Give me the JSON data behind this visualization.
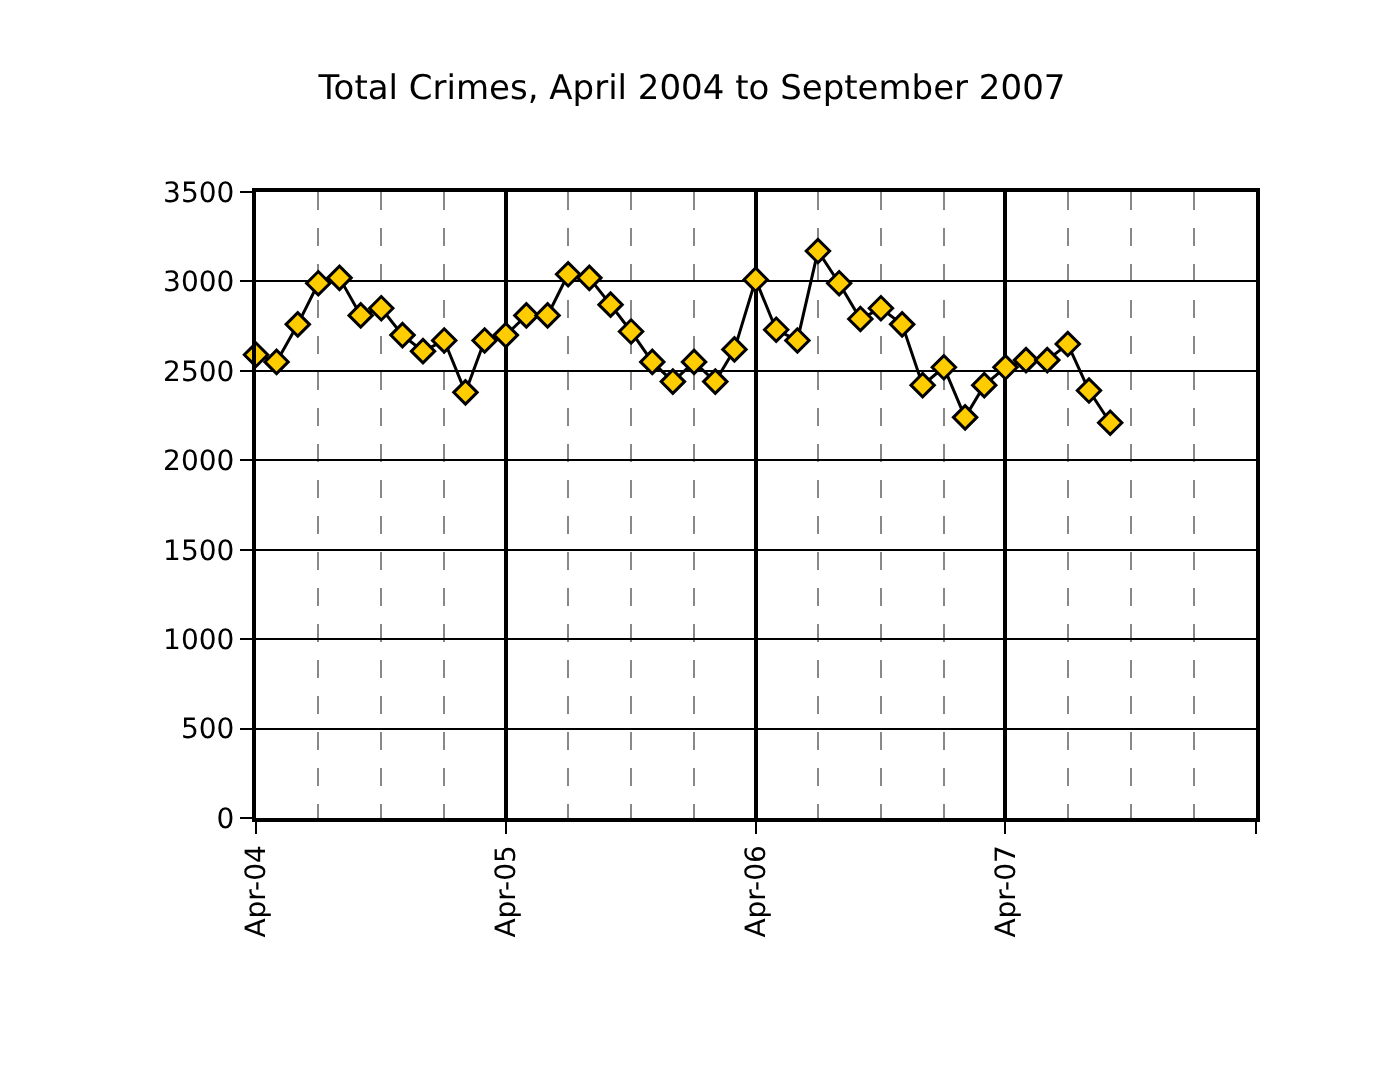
{
  "chart_data": {
    "type": "line",
    "title": "Total Crimes, April 2004 to September 2007",
    "x": [
      "2004-04",
      "2004-05",
      "2004-06",
      "2004-07",
      "2004-08",
      "2004-09",
      "2004-10",
      "2004-11",
      "2004-12",
      "2005-01",
      "2005-02",
      "2005-03",
      "2005-04",
      "2005-05",
      "2005-06",
      "2005-07",
      "2005-08",
      "2005-09",
      "2005-10",
      "2005-11",
      "2005-12",
      "2006-01",
      "2006-02",
      "2006-03",
      "2006-04",
      "2006-05",
      "2006-06",
      "2006-07",
      "2006-08",
      "2006-09",
      "2006-10",
      "2006-11",
      "2006-12",
      "2007-01",
      "2007-02",
      "2007-03",
      "2007-04",
      "2007-05",
      "2007-06",
      "2007-07",
      "2007-08",
      "2007-09"
    ],
    "series": [
      {
        "color": "#ffcc00",
        "values": [
          2590,
          2550,
          2760,
          2990,
          3020,
          2810,
          2850,
          2700,
          2610,
          2670,
          2380,
          2670,
          2700,
          2810,
          2810,
          3040,
          3020,
          2870,
          2720,
          2550,
          2440,
          2550,
          2440,
          2620,
          3010,
          2730,
          2670,
          3170,
          2990,
          2790,
          2850,
          2760,
          2420,
          2520,
          2240,
          2420,
          2520,
          2560,
          2560,
          2650,
          2390,
          2210
        ]
      }
    ],
    "xlim": [
      "2004-04",
      "2008-04"
    ],
    "xticks": [
      {
        "value": "2004-04",
        "label": "Apr-04"
      },
      {
        "value": "2005-04",
        "label": "Apr-05"
      },
      {
        "value": "2006-04",
        "label": "Apr-06"
      },
      {
        "value": "2007-04",
        "label": "Apr-07"
      },
      {
        "value": "2008-04",
        "label": null
      }
    ],
    "ylim": [
      0,
      3500
    ],
    "yticks": [
      0,
      500,
      1000,
      1500,
      2000,
      2500,
      3000,
      3500
    ],
    "grid": true,
    "marker": "diamond",
    "line_style": "solid"
  }
}
